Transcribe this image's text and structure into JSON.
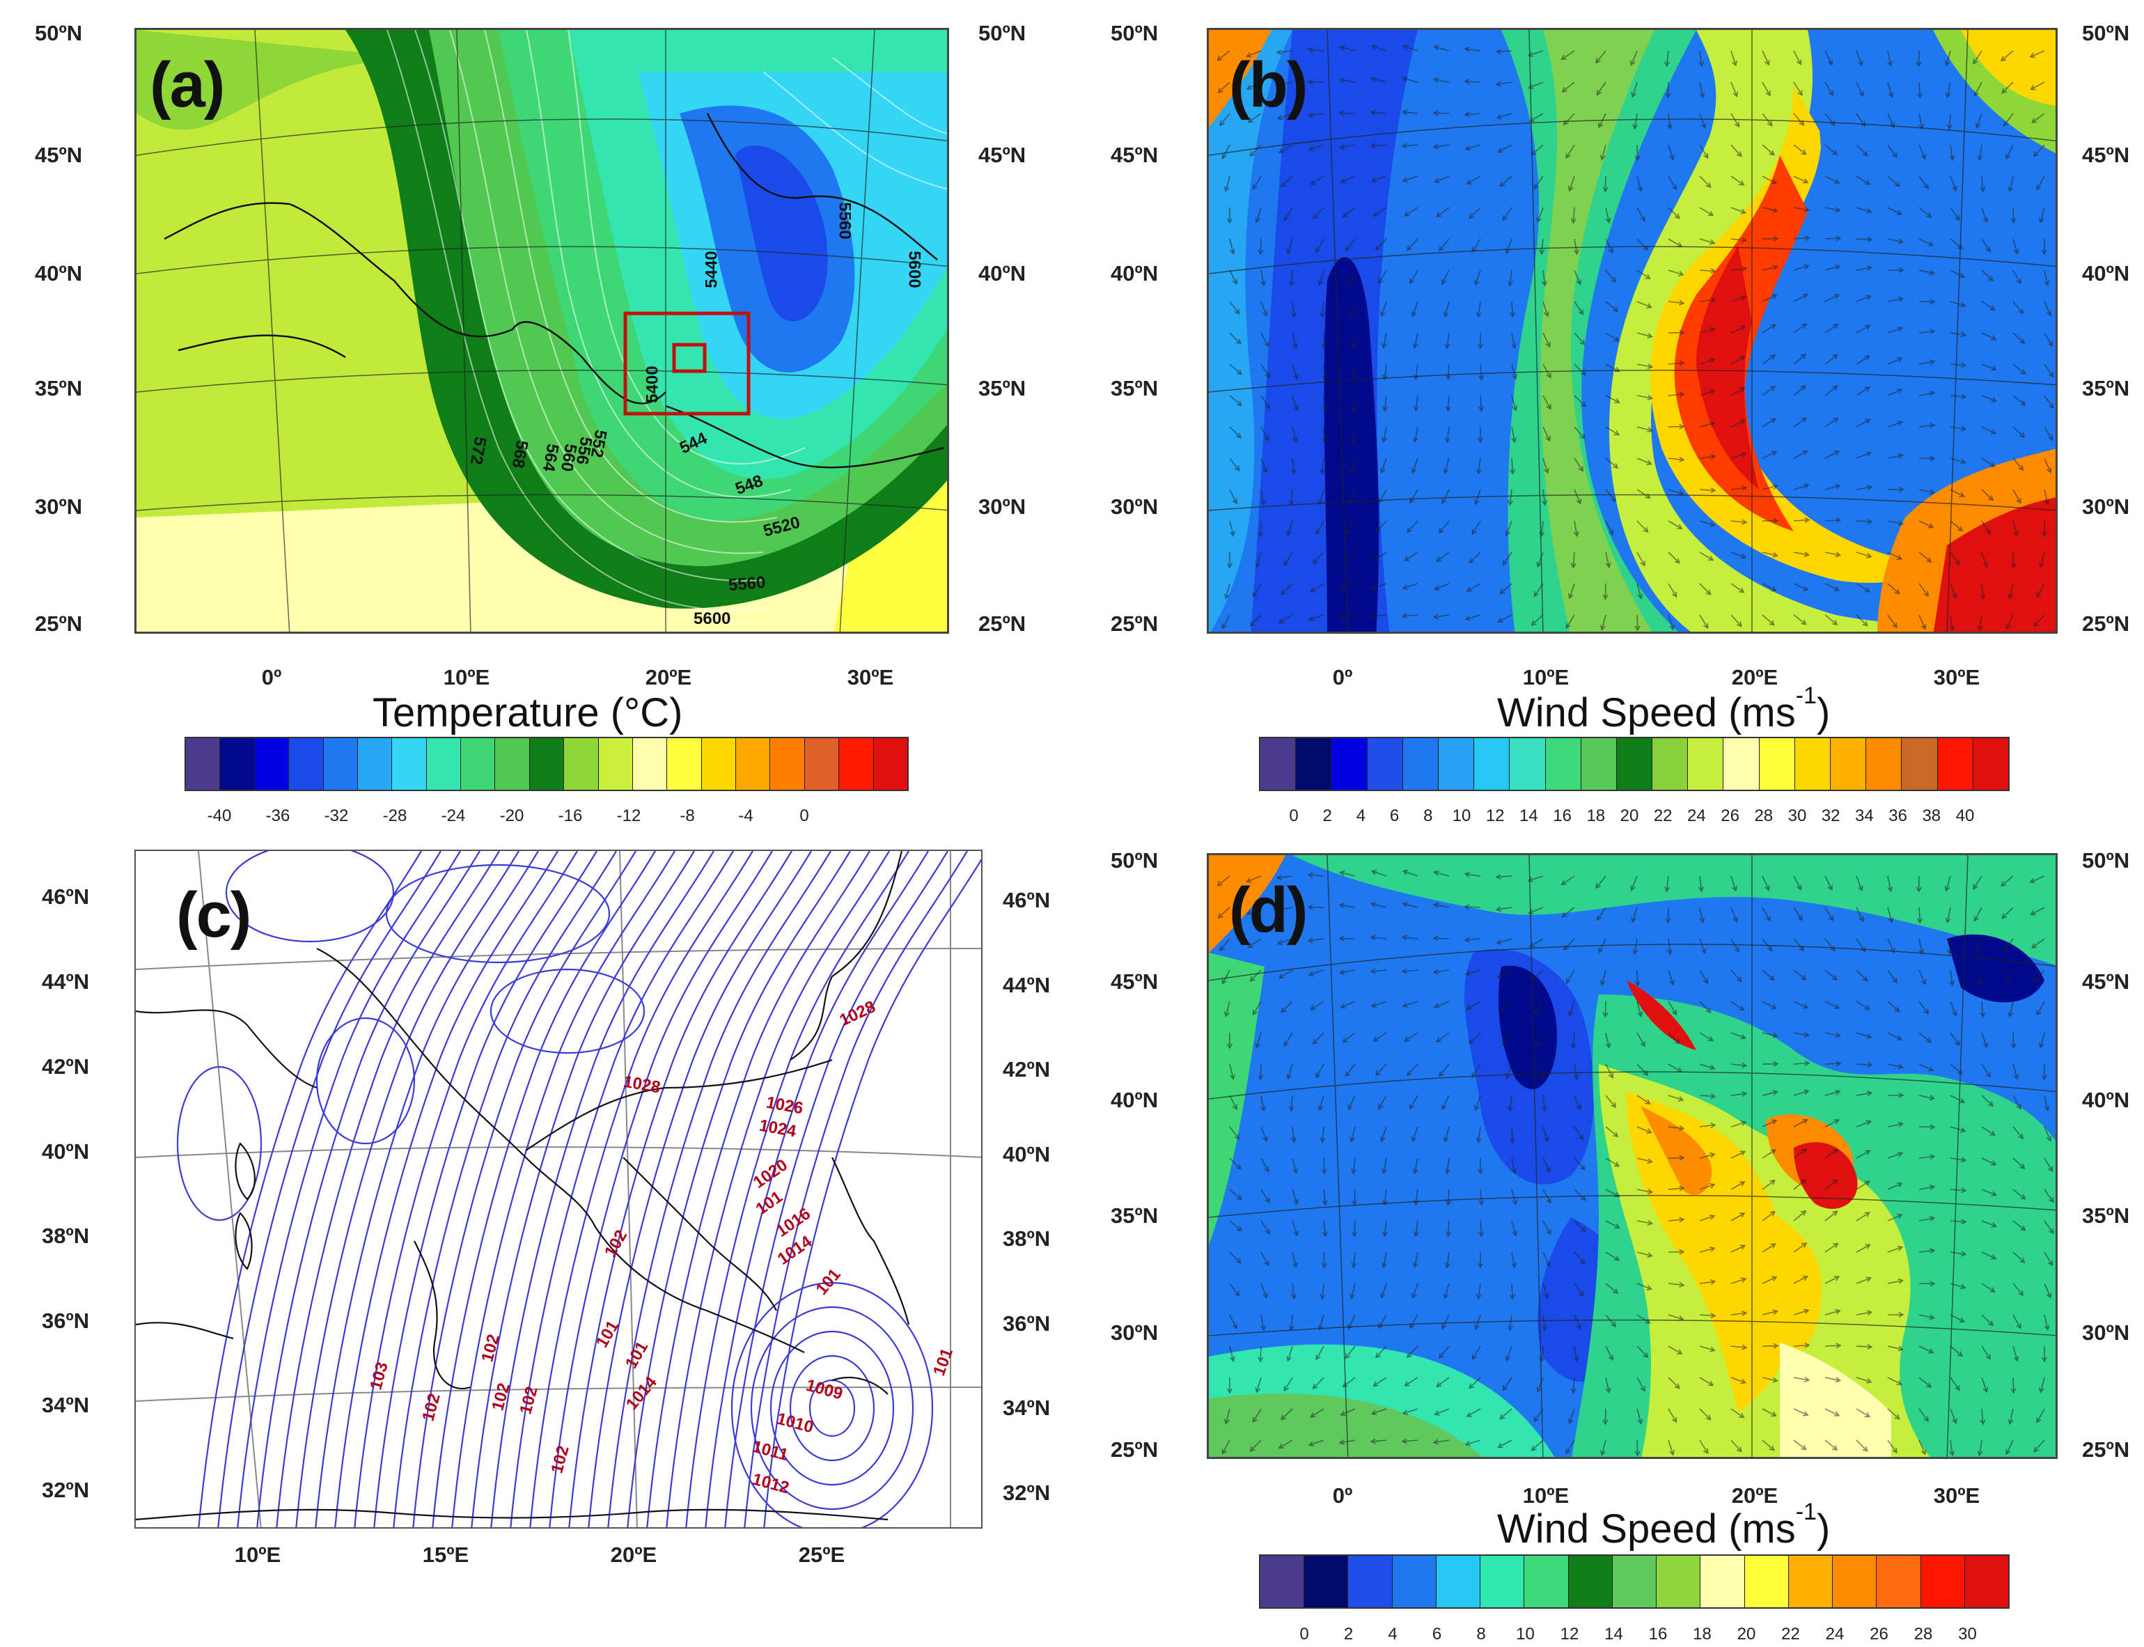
{
  "panels": {
    "a": {
      "tag": "(a)",
      "lat_labels": [
        "50ºN",
        "45ºN",
        "40ºN",
        "35ºN",
        "30ºN",
        "25ºN"
      ],
      "lon_labels": [
        "0º",
        "10ºE",
        "20ºE",
        "30ºE"
      ],
      "contour_labels": [
        "5440",
        "5400",
        "5560",
        "5600",
        "572",
        "568",
        "564",
        "560",
        "556",
        "552",
        "544",
        "548",
        "5520",
        "5560",
        "5600"
      ],
      "colorbar": {
        "title": "Temperature (°C)",
        "ticks": [
          "-40",
          "-36",
          "-32",
          "-28",
          "-24",
          "-20",
          "-16",
          "-12",
          "-8",
          "-4",
          "0"
        ],
        "colors": [
          "#4a3b8f",
          "#000a8a",
          "#0000e0",
          "#1a4be8",
          "#1f78f0",
          "#27a6f4",
          "#34d5f5",
          "#33e6b0",
          "#3fd775",
          "#51c851",
          "#0f7d18",
          "#8fd639",
          "#c9ef3a",
          "#ffffb0",
          "#ffff3c",
          "#ffd700",
          "#ffa800",
          "#ff8000",
          "#e0602a",
          "#ff1a00",
          "#e01010"
        ]
      }
    },
    "b": {
      "tag": "(b)",
      "lat_labels": [
        "50ºN",
        "45ºN",
        "40ºN",
        "35ºN",
        "30ºN",
        "25ºN"
      ],
      "lon_labels": [
        "0º",
        "10ºE",
        "20ºE",
        "30ºE"
      ],
      "colorbar": {
        "title": "Wind Speed (ms",
        "title_sup": "-1",
        "title_end": ")",
        "ticks": [
          "0",
          "2",
          "4",
          "6",
          "8",
          "10",
          "12",
          "14",
          "16",
          "18",
          "20",
          "22",
          "24",
          "26",
          "28",
          "30",
          "32",
          "34",
          "36",
          "38",
          "40"
        ],
        "colors": [
          "#4a3b8f",
          "#000a6a",
          "#0000e0",
          "#1f4ee8",
          "#1f78f0",
          "#2aa0f2",
          "#25c8f5",
          "#37e0c0",
          "#3ed97a",
          "#58c858",
          "#0f7d18",
          "#88d13c",
          "#c5ee3d",
          "#ffffb0",
          "#ffff3a",
          "#ffd700",
          "#ffb000",
          "#ff8c00",
          "#c8692a",
          "#ff1500",
          "#e01010"
        ]
      }
    },
    "c": {
      "tag": "(c)",
      "lat_labels": [
        "46ºN",
        "44ºN",
        "42ºN",
        "40ºN",
        "38ºN",
        "36ºN",
        "34ºN",
        "32ºN"
      ],
      "lon_labels": [
        "10ºE",
        "15ºE",
        "20ºE",
        "25ºE"
      ],
      "pressure_labels": [
        "1028",
        "1028",
        "1026",
        "1024",
        "1020",
        "101",
        "1016",
        "1014",
        "101",
        "102",
        "101",
        "101",
        "1014",
        "102",
        "102",
        "102",
        "102",
        "102",
        "103",
        "1009",
        "1010",
        "1011",
        "1012",
        "101"
      ]
    },
    "d": {
      "tag": "(d)",
      "lat_labels": [
        "50ºN",
        "45ºN",
        "40ºN",
        "35ºN",
        "30ºN",
        "25ºN"
      ],
      "lon_labels": [
        "0º",
        "10ºE",
        "20ºE",
        "30ºE"
      ],
      "colorbar": {
        "title": "Wind Speed (ms",
        "title_sup": "-1",
        "title_end": ")",
        "ticks": [
          "0",
          "2",
          "4",
          "6",
          "8",
          "10",
          "12",
          "14",
          "16",
          "18",
          "20",
          "22",
          "24",
          "26",
          "28",
          "30"
        ],
        "colors": [
          "#4a3b8f",
          "#000a6a",
          "#1f4ee8",
          "#1f78f0",
          "#25c8f5",
          "#2fe8b0",
          "#3ed97a",
          "#0f7d18",
          "#5fc85f",
          "#8fd63c",
          "#ffffb0",
          "#ffff3a",
          "#ffb000",
          "#ff8c00",
          "#ff6a10",
          "#ff1500",
          "#e01010"
        ]
      }
    }
  }
}
